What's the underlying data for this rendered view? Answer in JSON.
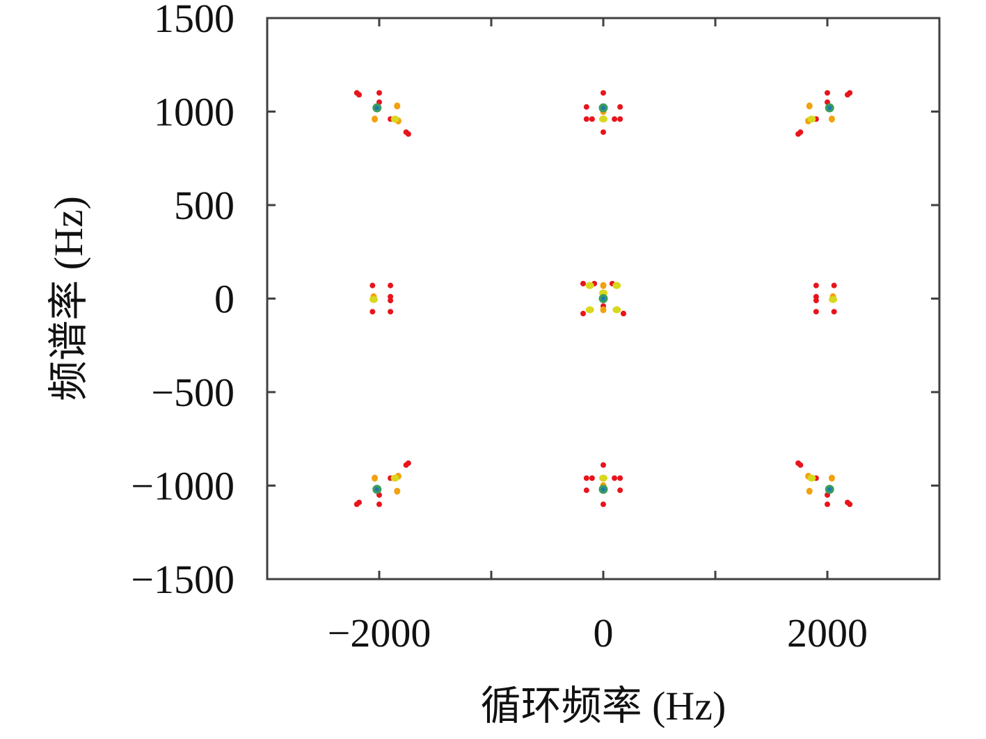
{
  "chart_data": {
    "type": "scatter",
    "title": "",
    "xlabel": "循环频率 (Hz)",
    "ylabel": "频谱率 (Hz)",
    "xlim": [
      -3000,
      3000
    ],
    "ylim": [
      -1500,
      1500
    ],
    "xticks": [
      -2000,
      0,
      2000
    ],
    "xtick_labels": [
      "−2000",
      "0",
      "2000"
    ],
    "yticks": [
      1500,
      1000,
      500,
      0,
      -500,
      -1000,
      -1500
    ],
    "ytick_labels": [
      "1500",
      "1000",
      "500",
      "0",
      "−500",
      "−1000",
      "−1500"
    ],
    "grid": false,
    "colors": {
      "level_high": "#1f77b4",
      "level_mid_high": "#3a9d5d",
      "level_mid": "#d8d81e",
      "level_low_mid": "#f2a10f",
      "level_low": "#e8141c",
      "axis": "#404040"
    },
    "series": [
      {
        "level": "low",
        "x": [
          -2200,
          -2180,
          -2000,
          -2000,
          -2040,
          -1900,
          -1760,
          -1740,
          2200,
          2180,
          2000,
          2000,
          2040,
          1900,
          1760,
          1740,
          -2200,
          -2180,
          -2000,
          -2000,
          -2040,
          -1900,
          -1760,
          -1740,
          2200,
          2180,
          2000,
          2000,
          2040,
          1900,
          1760,
          1740,
          -1900,
          -1900,
          -1900,
          -1900,
          -2060,
          -2060,
          1900,
          1900,
          1900,
          1900,
          2060,
          2060,
          0,
          0,
          -150,
          -100,
          100,
          150,
          -150,
          150,
          0,
          0,
          -150,
          -100,
          100,
          150,
          -150,
          150,
          0,
          -180,
          -80,
          80,
          180,
          -180,
          180
        ],
        "y": [
          1100,
          1090,
          1100,
          1050,
          960,
          960,
          890,
          880,
          1100,
          1090,
          1100,
          1050,
          960,
          960,
          890,
          880,
          -1100,
          -1090,
          -1100,
          -1050,
          -960,
          -960,
          -890,
          -880,
          -1100,
          -1090,
          -1100,
          -1050,
          -960,
          -960,
          -890,
          -880,
          70,
          10,
          -10,
          -70,
          70,
          -70,
          70,
          10,
          -10,
          -70,
          70,
          -70,
          1100,
          890,
          1025,
          960,
          960,
          1025,
          960,
          960,
          -1100,
          -890,
          -1025,
          -960,
          -960,
          -1025,
          -960,
          -960,
          -40,
          80,
          80,
          80,
          -80,
          -80,
          -80
        ]
      },
      {
        "level": "low_mid",
        "x": [
          -1840,
          -1830,
          -2040,
          1840,
          1830,
          2040,
          -1840,
          -1830,
          -2040,
          1840,
          1830,
          2040,
          -2050,
          2050,
          0,
          0,
          -120,
          120,
          -120,
          120,
          0,
          0
        ],
        "y": [
          1030,
          950,
          960,
          1030,
          950,
          960,
          -1030,
          -950,
          -960,
          -1030,
          -950,
          -960,
          10,
          10,
          1000,
          -1000,
          70,
          70,
          -60,
          -60,
          70,
          -60
        ]
      },
      {
        "level": "mid",
        "x": [
          -1860,
          1860,
          -1860,
          1860,
          -2050,
          2050,
          0,
          0,
          -120,
          120,
          -120,
          120,
          0
        ],
        "y": [
          960,
          960,
          -960,
          -960,
          -5,
          -5,
          960,
          -960,
          70,
          70,
          -60,
          -60,
          30
        ]
      },
      {
        "level": "mid_high",
        "x": [
          -2020,
          2020,
          -2020,
          2020,
          0,
          0,
          0
        ],
        "y": [
          1020,
          1020,
          -1020,
          -1020,
          1020,
          -1020,
          0
        ]
      },
      {
        "level": "high",
        "x": [
          -2020,
          2020,
          -2020,
          2020,
          0,
          0,
          0
        ],
        "y": [
          1020,
          1020,
          -1020,
          -1020,
          1020,
          -1020,
          0
        ]
      }
    ]
  }
}
